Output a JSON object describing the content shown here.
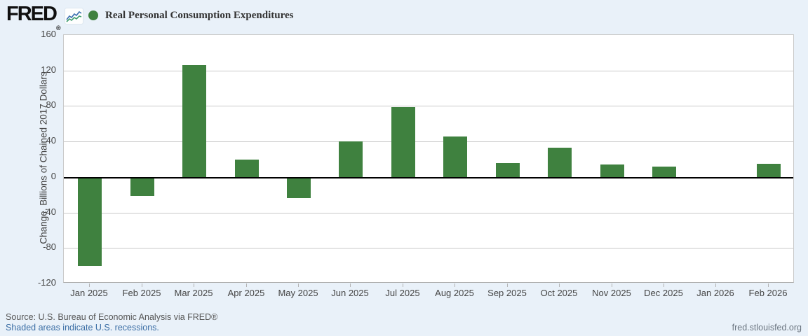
{
  "header": {
    "logo_text": "FRED",
    "logo_registered": "®",
    "legend": {
      "marker_color": "#3f813f",
      "series_label": "Real Personal Consumption Expenditures"
    }
  },
  "chart_data": {
    "type": "bar",
    "title": "Real Personal Consumption Expenditures",
    "xlabel": "",
    "ylabel": "Change, Billions of Chained 2017 Dollars",
    "categories": [
      "Jan 2025",
      "Feb 2025",
      "Mar 2025",
      "Apr 2025",
      "May 2025",
      "Jun 2025",
      "Jul 2025",
      "Aug 2025",
      "Sep 2025",
      "Oct 2025",
      "Nov 2025",
      "Dec 2025",
      "Jan 2026",
      "Feb 2026"
    ],
    "values": [
      -100,
      -21,
      126,
      20,
      -24,
      40,
      79,
      46,
      16,
      33,
      14,
      12,
      null,
      15
    ],
    "ylim": [
      -120,
      160
    ],
    "yticks": [
      160,
      120,
      80,
      40,
      0,
      -40,
      -80,
      -120
    ],
    "grid": true,
    "legend_position": "top-left",
    "bar_color": "#3f813f",
    "zero_line_color": "#000000",
    "gridline_color": "#c9c9c9",
    "plot_background": "#ffffff",
    "page_background": "#e9f1f9"
  },
  "footer": {
    "source": "Source: U.S. Bureau of Economic Analysis via FRED®",
    "recession_note": "Shaded areas indicate U.S. recessions.",
    "site": "fred.stlouisfed.org"
  }
}
